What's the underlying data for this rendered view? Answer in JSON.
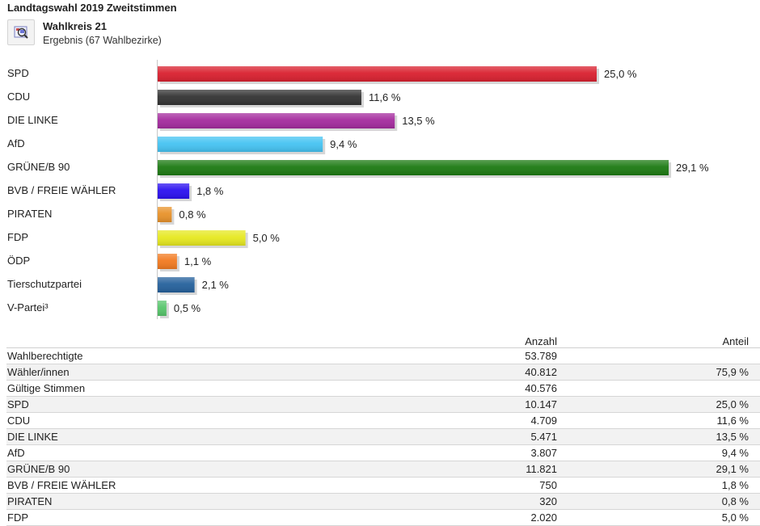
{
  "title": "Landtagswahl 2019 Zweitstimmen",
  "area": {
    "name": "Wahlkreis 21",
    "subtitle": "Ergebnis (67 Wahlbezirke)"
  },
  "icon": "map-magnify-icon",
  "chart_data": {
    "type": "bar",
    "orientation": "horizontal",
    "categories": [
      "SPD",
      "CDU",
      "DIE LINKE",
      "AfD",
      "GRÜNE/B 90",
      "BVB / FREIE WÄHLER",
      "PIRATEN",
      "FDP",
      "ÖDP",
      "Tierschutzpartei",
      "V-Partei³"
    ],
    "values": [
      25.0,
      11.6,
      13.5,
      9.4,
      29.1,
      1.8,
      0.8,
      5.0,
      1.1,
      2.1,
      0.5
    ],
    "value_labels": [
      "25,0 %",
      "11,6 %",
      "13,5 %",
      "9,4 %",
      "29,1 %",
      "1,8 %",
      "0,8 %",
      "5,0 %",
      "1,1 %",
      "2,1 %",
      "0,5 %"
    ],
    "colors": [
      "#d9202f",
      "#333333",
      "#a42b9e",
      "#45c3f2",
      "#1c7a12",
      "#2b10f0",
      "#e8922a",
      "#e6e820",
      "#f27a20",
      "#25619c",
      "#56c56a"
    ],
    "grid": false,
    "legend": "none"
  },
  "table": {
    "headers": {
      "name": "",
      "count": "Anzahl",
      "share": "Anteil"
    },
    "rows": [
      {
        "name": "Wahlberechtigte",
        "count": "53.789",
        "share": ""
      },
      {
        "name": "Wähler/innen",
        "count": "40.812",
        "share": "75,9 %"
      },
      {
        "name": "Gültige Stimmen",
        "count": "40.576",
        "share": ""
      },
      {
        "name": "SPD",
        "count": "10.147",
        "share": "25,0 %"
      },
      {
        "name": "CDU",
        "count": "4.709",
        "share": "11,6 %"
      },
      {
        "name": "DIE LINKE",
        "count": "5.471",
        "share": "13,5 %"
      },
      {
        "name": "AfD",
        "count": "3.807",
        "share": "9,4 %"
      },
      {
        "name": "GRÜNE/B 90",
        "count": "11.821",
        "share": "29,1 %"
      },
      {
        "name": "BVB / FREIE WÄHLER",
        "count": "750",
        "share": "1,8 %"
      },
      {
        "name": "PIRATEN",
        "count": "320",
        "share": "0,8 %"
      },
      {
        "name": "FDP",
        "count": "2.020",
        "share": "5,0 %"
      }
    ]
  }
}
